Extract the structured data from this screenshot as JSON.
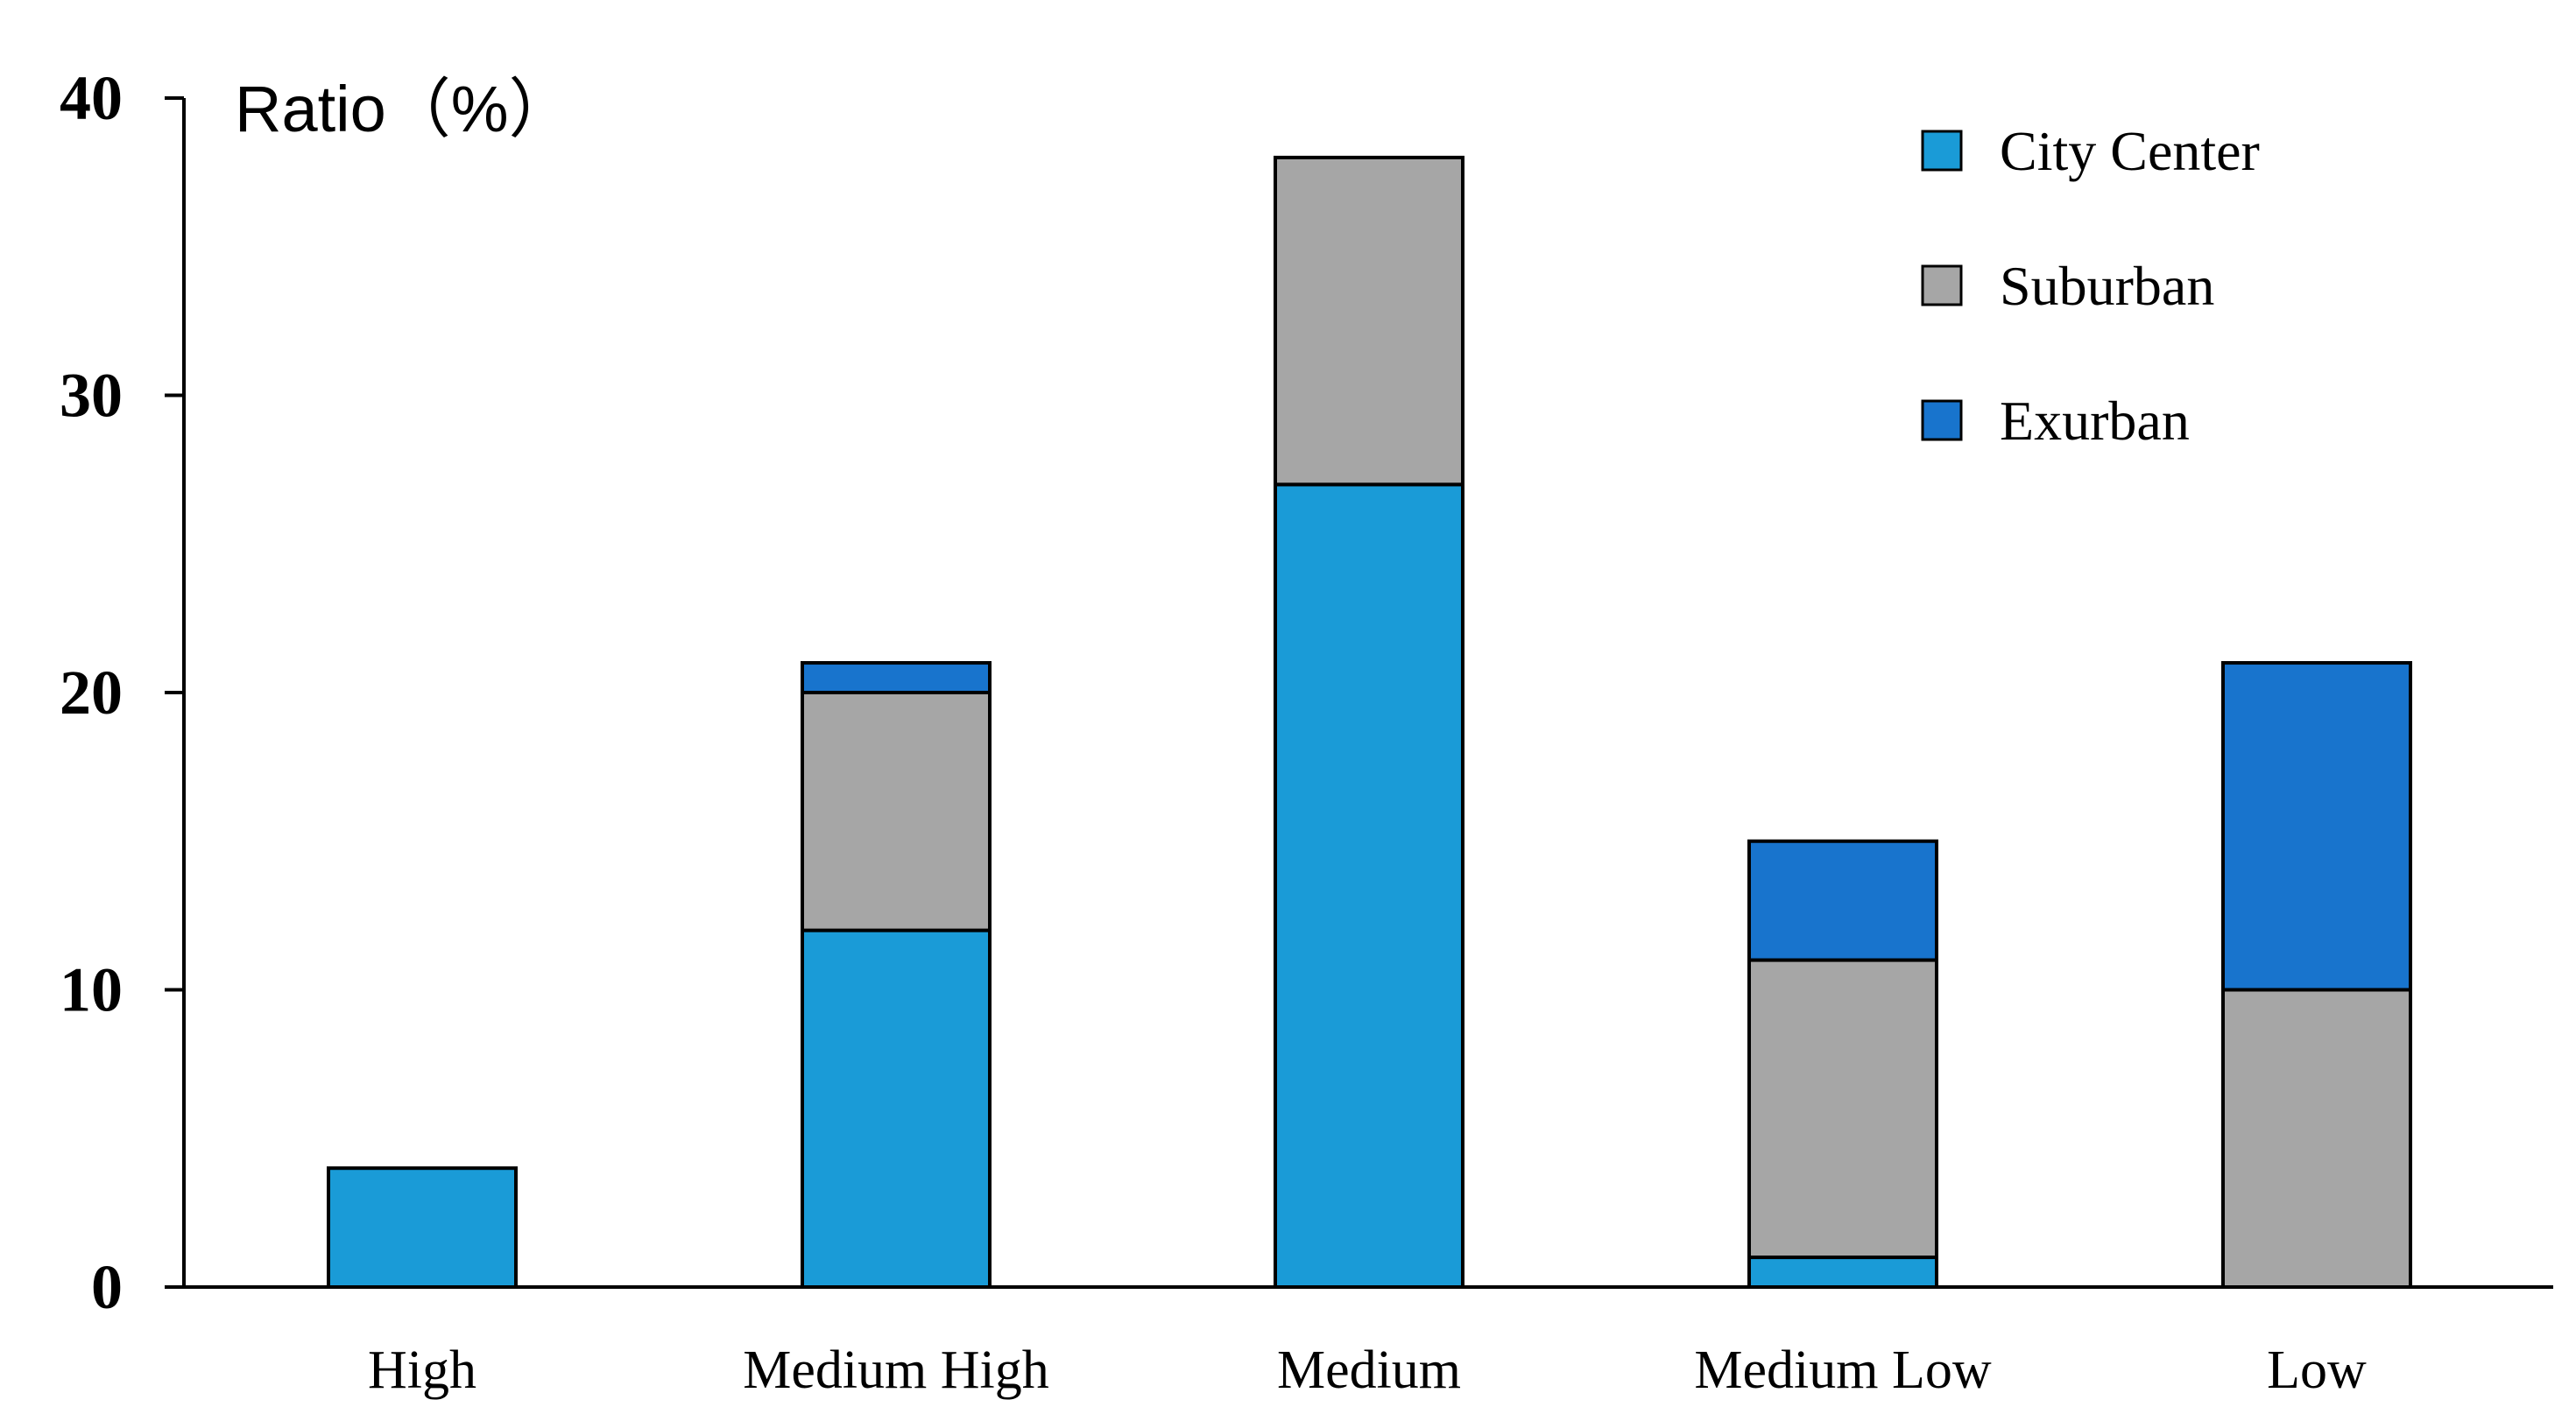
{
  "chart_data": {
    "type": "bar",
    "stacked": true,
    "title": "",
    "xlabel": "",
    "ylabel": "Ratio（%）",
    "ylim": [
      0,
      40
    ],
    "yticks": [
      0,
      10,
      20,
      30,
      40
    ],
    "grid": false,
    "legend_position": "top-right",
    "categories": [
      "High",
      "Medium High",
      "Medium",
      "Medium Low",
      "Low"
    ],
    "series": [
      {
        "name": "City Center",
        "color": "#1A9BD7",
        "values": [
          4,
          12,
          27,
          1,
          0
        ]
      },
      {
        "name": "Suburban",
        "color": "#A6A6A6",
        "values": [
          0,
          8,
          11,
          10,
          10
        ]
      },
      {
        "name": "Exurban",
        "color": "#1874CD",
        "values": [
          0,
          1,
          0,
          4,
          11
        ]
      }
    ]
  }
}
